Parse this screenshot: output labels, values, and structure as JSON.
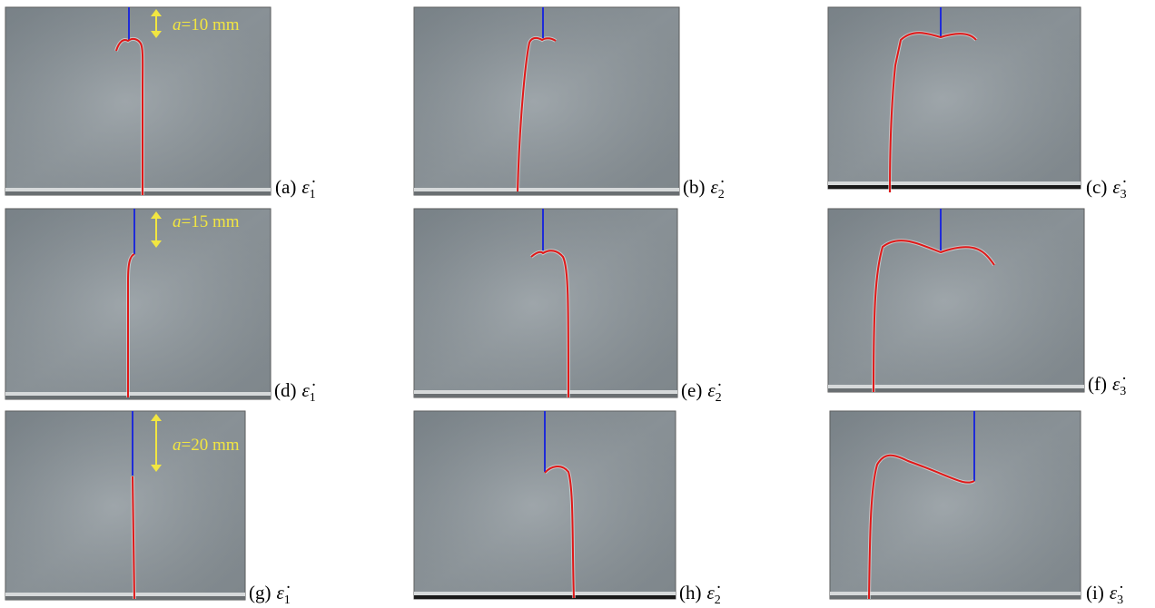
{
  "panels": [
    {
      "label": "(a)",
      "strain": "ε̇",
      "subscript": "1"
    },
    {
      "label": "(b)",
      "strain": "ε̇",
      "subscript": "2"
    },
    {
      "label": "(c)",
      "strain": "ε̇",
      "subscript": "3"
    },
    {
      "label": "(d)",
      "strain": "ε̇",
      "subscript": "1"
    },
    {
      "label": "(e)",
      "strain": "ε̇",
      "subscript": "2"
    },
    {
      "label": "(f)",
      "strain": "ε̇",
      "subscript": "3"
    },
    {
      "label": "(g)",
      "strain": "ε̇",
      "subscript": "1"
    },
    {
      "label": "(h)",
      "strain": "ε̇",
      "subscript": "2"
    },
    {
      "label": "(i)",
      "strain": "ε̇",
      "subscript": "3"
    }
  ],
  "annotations": [
    {
      "symbol": "a",
      "text": "=10 mm"
    },
    {
      "symbol": "a",
      "text": "=15 mm"
    },
    {
      "symbol": "a",
      "text": "=20 mm"
    }
  ]
}
